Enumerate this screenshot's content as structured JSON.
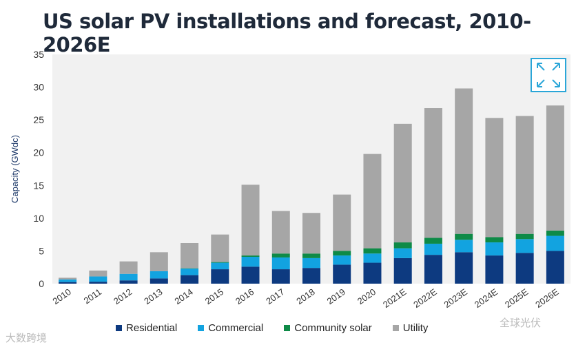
{
  "chart_data": {
    "type": "bar",
    "stacked": true,
    "title": "US solar PV installations and forecast, 2010-2026E",
    "xlabel": "",
    "ylabel": "Capacity (GWdc)",
    "ylim": [
      0,
      35
    ],
    "yticks": [
      0,
      5,
      10,
      15,
      20,
      25,
      30,
      35
    ],
    "grid": false,
    "legend_position": "bottom",
    "categories": [
      "2010",
      "2011",
      "2012",
      "2013",
      "2014",
      "2015",
      "2016",
      "2017",
      "2018",
      "2019",
      "2020",
      "2021E",
      "2022E",
      "2023E",
      "2024E",
      "2025E",
      "2026E"
    ],
    "series": [
      {
        "name": "Residential",
        "color": "#0d3a80",
        "values": [
          0.25,
          0.3,
          0.5,
          0.8,
          1.3,
          2.2,
          2.6,
          2.2,
          2.4,
          2.9,
          3.2,
          3.9,
          4.4,
          4.8,
          4.3,
          4.7,
          5.0
        ]
      },
      {
        "name": "Commercial",
        "color": "#12a3e0",
        "values": [
          0.4,
          0.8,
          1.0,
          1.1,
          1.0,
          1.0,
          1.5,
          1.8,
          1.5,
          1.4,
          1.4,
          1.5,
          1.7,
          1.9,
          2.0,
          2.1,
          2.3
        ]
      },
      {
        "name": "Community solar",
        "color": "#0e8a47",
        "values": [
          0,
          0,
          0,
          0,
          0.05,
          0.1,
          0.2,
          0.6,
          0.7,
          0.7,
          0.8,
          0.9,
          0.9,
          0.9,
          0.8,
          0.8,
          0.8
        ]
      },
      {
        "name": "Utility",
        "color": "#a6a6a6",
        "values": [
          0.25,
          0.9,
          1.9,
          2.9,
          3.85,
          4.2,
          10.8,
          6.5,
          6.2,
          8.6,
          14.4,
          18.1,
          19.8,
          22.2,
          18.2,
          18.0,
          19.1
        ]
      }
    ]
  },
  "watermarks": [
    "大数跨境",
    "全球光伏"
  ],
  "expand_icon": "expand-icon"
}
